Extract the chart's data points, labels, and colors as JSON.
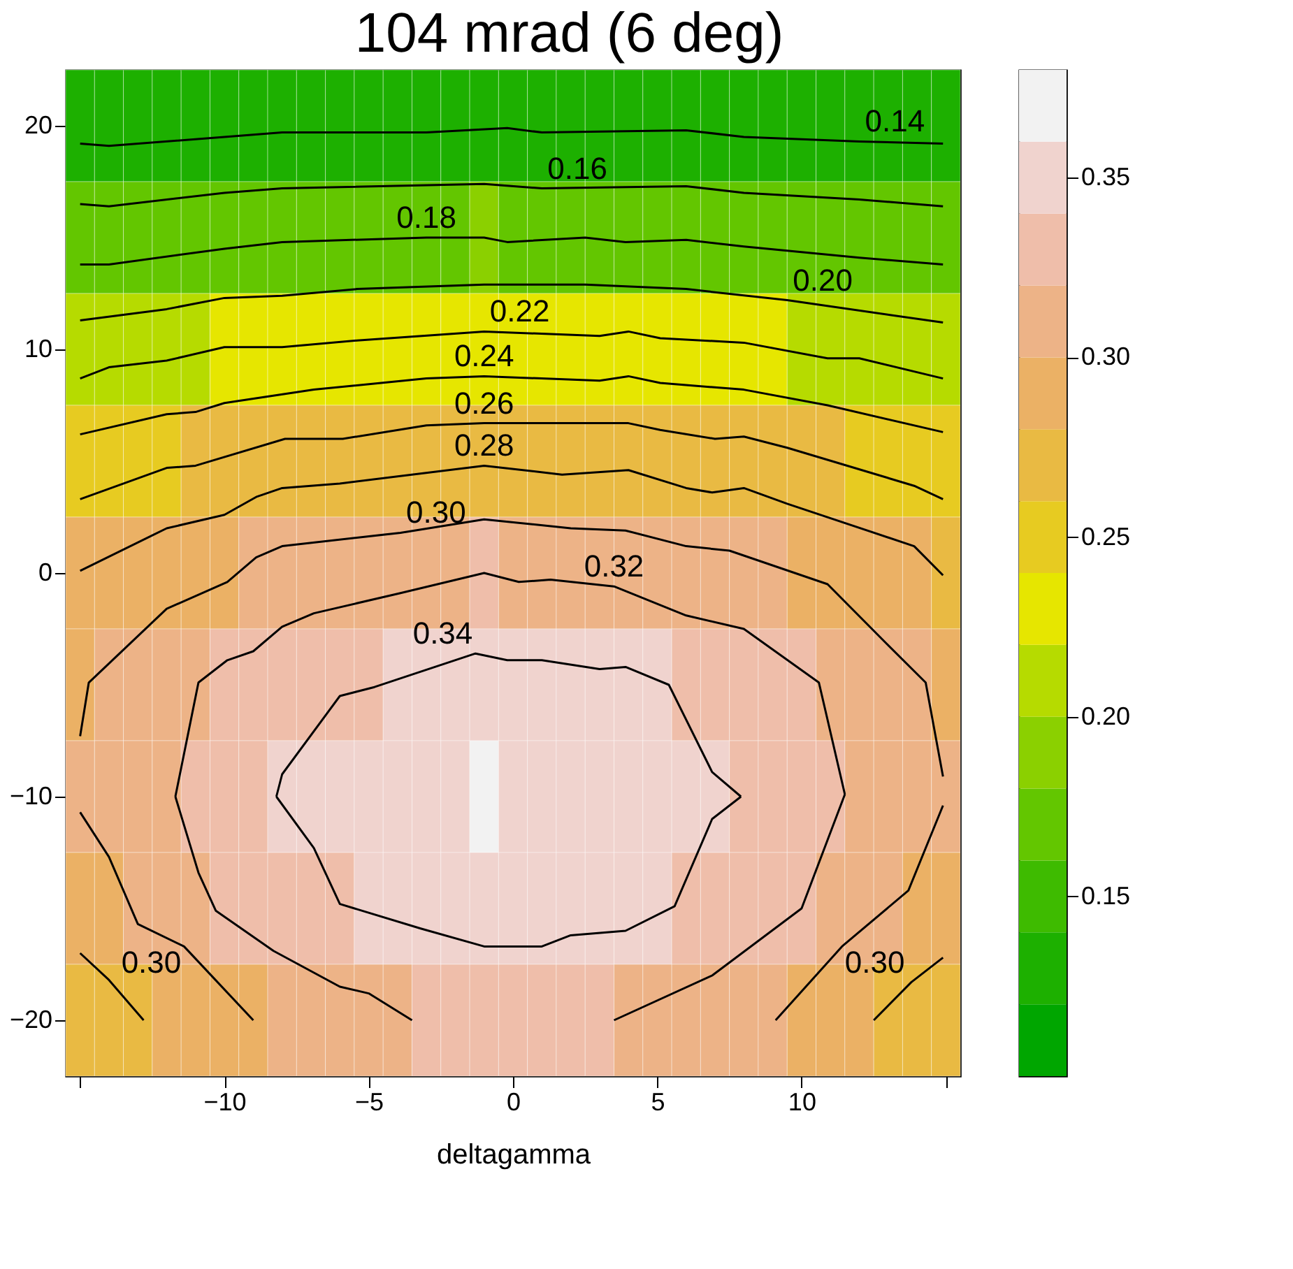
{
  "chart_data": {
    "type": "heatmap",
    "title": "104 mrad (6 deg)",
    "xlabel": "deltagamma",
    "x": [
      -15,
      -14,
      -13,
      -12,
      -11,
      -10,
      -9,
      -8,
      -7,
      -6,
      -5,
      -4,
      -3,
      -2,
      -1,
      0,
      1,
      2,
      3,
      4,
      5,
      6,
      7,
      8,
      9,
      10,
      11,
      12,
      13,
      14,
      15
    ],
    "cells": [
      [
        0.13,
        0.13,
        0.13,
        0.13,
        0.13,
        0.13,
        0.13,
        0.13,
        0.13,
        0.13,
        0.13,
        0.13,
        0.13,
        0.13,
        0.13,
        0.13,
        0.13,
        0.13,
        0.13,
        0.13,
        0.13,
        0.13,
        0.13,
        0.13,
        0.13,
        0.13,
        0.13,
        0.13,
        0.13,
        0.13,
        0.13
      ],
      [
        0.17,
        0.17,
        0.17,
        0.17,
        0.17,
        0.17,
        0.17,
        0.17,
        0.17,
        0.17,
        0.17,
        0.17,
        0.17,
        0.17,
        0.19,
        0.17,
        0.17,
        0.17,
        0.17,
        0.17,
        0.17,
        0.17,
        0.17,
        0.17,
        0.17,
        0.17,
        0.17,
        0.17,
        0.17,
        0.17,
        0.17
      ],
      [
        0.21,
        0.21,
        0.21,
        0.21,
        0.21,
        0.23,
        0.23,
        0.23,
        0.23,
        0.23,
        0.23,
        0.23,
        0.23,
        0.23,
        0.23,
        0.23,
        0.23,
        0.23,
        0.23,
        0.23,
        0.23,
        0.23,
        0.23,
        0.23,
        0.23,
        0.21,
        0.21,
        0.21,
        0.21,
        0.21,
        0.21
      ],
      [
        0.25,
        0.25,
        0.25,
        0.25,
        0.27,
        0.27,
        0.27,
        0.27,
        0.27,
        0.27,
        0.27,
        0.27,
        0.27,
        0.27,
        0.27,
        0.27,
        0.27,
        0.27,
        0.27,
        0.27,
        0.27,
        0.27,
        0.27,
        0.27,
        0.27,
        0.27,
        0.27,
        0.25,
        0.25,
        0.25,
        0.25
      ],
      [
        0.29,
        0.29,
        0.29,
        0.29,
        0.29,
        0.29,
        0.31,
        0.31,
        0.31,
        0.31,
        0.31,
        0.31,
        0.31,
        0.31,
        0.33,
        0.31,
        0.31,
        0.31,
        0.31,
        0.31,
        0.31,
        0.31,
        0.31,
        0.31,
        0.31,
        0.29,
        0.29,
        0.29,
        0.29,
        0.29,
        0.27
      ],
      [
        0.29,
        0.31,
        0.31,
        0.31,
        0.31,
        0.33,
        0.33,
        0.33,
        0.33,
        0.33,
        0.33,
        0.35,
        0.35,
        0.35,
        0.35,
        0.35,
        0.35,
        0.35,
        0.35,
        0.35,
        0.35,
        0.33,
        0.33,
        0.33,
        0.33,
        0.33,
        0.31,
        0.31,
        0.31,
        0.31,
        0.29
      ],
      [
        0.31,
        0.31,
        0.31,
        0.31,
        0.33,
        0.33,
        0.33,
        0.35,
        0.35,
        0.35,
        0.35,
        0.35,
        0.35,
        0.35,
        0.37,
        0.35,
        0.35,
        0.35,
        0.35,
        0.35,
        0.35,
        0.35,
        0.35,
        0.33,
        0.33,
        0.33,
        0.33,
        0.31,
        0.31,
        0.31,
        0.31
      ],
      [
        0.29,
        0.29,
        0.31,
        0.31,
        0.31,
        0.33,
        0.33,
        0.33,
        0.33,
        0.33,
        0.35,
        0.35,
        0.35,
        0.35,
        0.35,
        0.35,
        0.35,
        0.35,
        0.35,
        0.35,
        0.35,
        0.33,
        0.33,
        0.33,
        0.33,
        0.33,
        0.31,
        0.31,
        0.31,
        0.29,
        0.29
      ],
      [
        0.27,
        0.27,
        0.27,
        0.29,
        0.29,
        0.29,
        0.29,
        0.31,
        0.31,
        0.31,
        0.31,
        0.31,
        0.33,
        0.33,
        0.33,
        0.33,
        0.33,
        0.33,
        0.33,
        0.31,
        0.31,
        0.31,
        0.31,
        0.31,
        0.31,
        0.29,
        0.29,
        0.29,
        0.27,
        0.27,
        0.27
      ]
    ],
    "colors": [
      "#00a600",
      "#1db000",
      "#3ebb00",
      "#63c600",
      "#8bd000",
      "#b6db00",
      "#e6e600",
      "#e7cb21",
      "#e9ba43",
      "#ebb165",
      "#edb387",
      "#efbeaa",
      "#f0d3ce",
      "#f2f2f2"
    ],
    "clim": [
      0.1,
      0.38
    ],
    "cticks": [
      0.15,
      {
        "value": 0.2,
        "label": "0.20"
      },
      0.25,
      {
        "value": 0.3,
        "label": "0.30"
      },
      0.35
    ],
    "xlim": [
      -15.5,
      15.5
    ],
    "ylim": [
      -22.5,
      22.5
    ],
    "xticks": [
      {
        "value": -15,
        "label": null
      },
      -10,
      -5,
      0,
      5,
      10,
      {
        "value": 15,
        "label": null
      }
    ],
    "yticks": [
      -20,
      -10,
      0,
      10,
      20
    ],
    "series": [
      {
        "type": "line",
        "name": "0.14",
        "color": "#000000",
        "x": [
          -15,
          -14,
          -10,
          -8,
          -3,
          -0.2,
          1,
          6,
          8,
          12,
          14.9
        ],
        "values": [
          19.2,
          19.1,
          19.5,
          19.7,
          19.7,
          19.9,
          19.7,
          19.8,
          19.5,
          19.3,
          19.2
        ]
      },
      {
        "type": "line",
        "name": "0.16",
        "color": "#000000",
        "x": [
          -15,
          -14,
          -10,
          -8,
          -1,
          1,
          6,
          8,
          12,
          14.9
        ],
        "values": [
          16.5,
          16.4,
          17.0,
          17.2,
          17.4,
          17.2,
          17.3,
          17.0,
          16.7,
          16.4
        ]
      },
      {
        "type": "line",
        "name": "0.18",
        "color": "#000000",
        "x": [
          -15,
          -14,
          -10,
          -8,
          -3,
          -1,
          -0.2,
          2.5,
          3.9,
          6,
          8,
          12,
          14.9
        ],
        "values": [
          13.8,
          13.8,
          14.5,
          14.8,
          15.0,
          15.0,
          14.8,
          15.0,
          14.8,
          14.9,
          14.6,
          14.1,
          13.8
        ]
      },
      {
        "type": "line",
        "name": "0.20",
        "color": "#000000",
        "x": [
          -15,
          -12,
          -10,
          -8,
          -5.4,
          -1,
          2.5,
          6,
          9.5,
          14.9
        ],
        "values": [
          11.3,
          11.8,
          12.3,
          12.4,
          12.7,
          12.9,
          12.9,
          12.7,
          12.2,
          11.2
        ]
      },
      {
        "type": "line",
        "name": "0.22",
        "color": "#000000",
        "x": [
          -15,
          -14,
          -12,
          -10,
          -8,
          -5.4,
          -1,
          3,
          4,
          5.1,
          8,
          10.9,
          12,
          14.9
        ],
        "values": [
          8.7,
          9.2,
          9.5,
          10.1,
          10.1,
          10.4,
          10.8,
          10.6,
          10.8,
          10.5,
          10.3,
          9.6,
          9.6,
          8.7
        ]
      },
      {
        "type": "line",
        "name": "0.24",
        "color": "#000000",
        "x": [
          -15,
          -12,
          -11,
          -10,
          -6.9,
          -3,
          -1,
          3,
          4,
          5.1,
          8,
          10.9,
          14.9
        ],
        "values": [
          6.2,
          7.1,
          7.2,
          7.6,
          8.2,
          8.7,
          8.8,
          8.6,
          8.8,
          8.5,
          8.2,
          7.5,
          6.3
        ]
      },
      {
        "type": "line",
        "name": "0.26",
        "color": "#000000",
        "x": [
          -15,
          -12,
          -11,
          -7.9,
          -5.9,
          -3,
          -1,
          4,
          5.1,
          7,
          8,
          9.5,
          13.9,
          14.9
        ],
        "values": [
          3.3,
          4.7,
          4.8,
          6.0,
          6.0,
          6.6,
          6.7,
          6.7,
          6.4,
          6.0,
          6.1,
          5.6,
          3.9,
          3.3
        ]
      },
      {
        "type": "line",
        "name": "0.28",
        "color": "#000000",
        "x": [
          -15,
          -12,
          -10,
          -8.9,
          -8,
          -6,
          -1,
          1.7,
          4,
          6,
          6.9,
          8,
          9.5,
          13.9,
          14.9
        ],
        "values": [
          0.1,
          2.0,
          2.6,
          3.4,
          3.8,
          4.0,
          4.8,
          4.4,
          4.6,
          3.8,
          3.6,
          3.8,
          3.1,
          1.2,
          -0.1
        ]
      },
      {
        "type": "line",
        "name": "0.30",
        "color": "#000000",
        "x": [
          -15,
          -14.7,
          -12,
          -9.9,
          -8.9,
          -8,
          -3.9,
          -1,
          2,
          3.9,
          6,
          7.5,
          10.9,
          12.9,
          14.3,
          14.9
        ],
        "values": [
          -7.3,
          -4.9,
          -1.6,
          -0.4,
          0.7,
          1.2,
          1.8,
          2.4,
          2.0,
          1.9,
          1.2,
          1.0,
          -0.5,
          -3.1,
          -4.9,
          -9.1
        ]
      },
      {
        "type": "line",
        "name": "0.30",
        "color": "#000000",
        "x": [
          -15,
          -14,
          -13,
          -11.4,
          -9
        ],
        "values": [
          -10.7,
          -12.7,
          -15.7,
          -16.7,
          -20
        ]
      },
      {
        "type": "line",
        "color": "#000000",
        "x": [
          -15,
          -14,
          -12.8
        ],
        "values": [
          -17.0,
          -18.2,
          -20
        ]
      },
      {
        "type": "line",
        "name": "0.30",
        "color": "#000000",
        "x": [
          14.9,
          13.7,
          11.4,
          9.1
        ],
        "values": [
          -10.4,
          -14.2,
          -16.7,
          -20
        ]
      },
      {
        "type": "line",
        "color": "#000000",
        "x": [
          14.9,
          13.8,
          12.5
        ],
        "values": [
          -17.2,
          -18.3,
          -20
        ]
      },
      {
        "type": "line",
        "name": "0.32",
        "color": "#000000",
        "x": [
          -11.7,
          -10.9,
          -9.9,
          -9,
          -8,
          -6.9,
          -3.9,
          -1,
          0.2,
          1.3,
          3.5,
          6,
          8,
          10.6,
          11.5
        ],
        "values": [
          -10,
          -4.9,
          -3.9,
          -3.5,
          -2.4,
          -1.8,
          -0.9,
          0,
          -0.4,
          -0.3,
          -0.6,
          -1.9,
          -2.5,
          -4.9,
          -9.9
        ]
      },
      {
        "type": "line",
        "color": "#000000",
        "x": [
          -11.7,
          -10.9,
          -10.3,
          -8.3,
          -6,
          -5,
          -3.5
        ],
        "values": [
          -10,
          -13.4,
          -15.1,
          -16.9,
          -18.5,
          -18.8,
          -20
        ]
      },
      {
        "type": "line",
        "color": "#000000",
        "x": [
          11.5,
          10,
          6.9,
          3.5
        ],
        "values": [
          -9.9,
          -15.0,
          -18.0,
          -20
        ]
      },
      {
        "type": "line",
        "name": "0.34",
        "color": "#000000",
        "x": [
          -8.2,
          -8,
          -6,
          -4.8,
          -1.3,
          -0.2,
          1,
          3,
          3.9,
          5.4,
          6.9,
          7.9
        ],
        "values": [
          -10,
          -9.0,
          -5.5,
          -5.1,
          -3.6,
          -3.9,
          -3.9,
          -4.3,
          -4.2,
          -5.0,
          -8.9,
          -10
        ]
      },
      {
        "type": "line",
        "color": "#000000",
        "x": [
          -8.2,
          -6.9,
          -6,
          -3.2,
          -1,
          1,
          2,
          3.9,
          5.6,
          6.9,
          7.9
        ],
        "values": [
          -10,
          -12.3,
          -14.8,
          -15.9,
          -16.7,
          -16.7,
          -16.2,
          -16.0,
          -14.9,
          -11.0,
          -10
        ]
      }
    ]
  }
}
